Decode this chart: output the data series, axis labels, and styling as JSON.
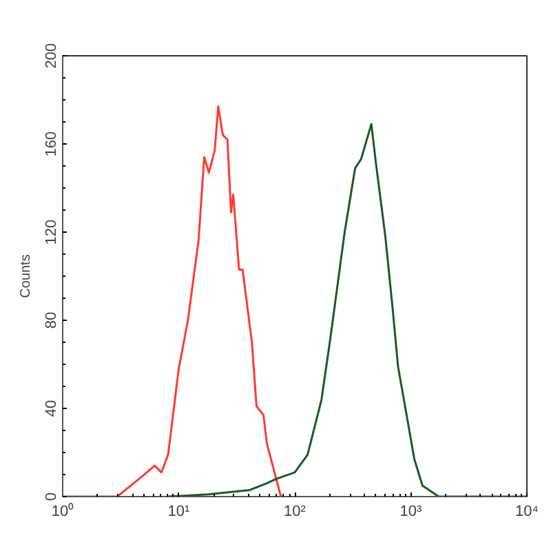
{
  "chart_data": {
    "type": "line",
    "ylabel": "Counts",
    "log": "x",
    "grid": false,
    "marker": "none",
    "line_style": "solid",
    "xlim": [
      1,
      10000
    ],
    "xticks": [
      {
        "value": 1,
        "label": "10⁰"
      },
      {
        "value": 10,
        "label": "10¹"
      },
      {
        "value": 100,
        "label": "10²"
      },
      {
        "value": 1000,
        "label": "10³"
      },
      {
        "value": 10000,
        "label": "10⁴"
      }
    ],
    "ylim": [
      0,
      200
    ],
    "yticks": [
      0,
      40,
      80,
      120,
      160,
      200
    ],
    "series": [
      {
        "color": "#ff3b30",
        "x": [
          1,
          2.95,
          4.8,
          6.2,
          7.1,
          8.1,
          10,
          12,
          14.8,
          16.6,
          18.2,
          20.4,
          21.9,
          24,
          26.3,
          28.2,
          29.5,
          33.1,
          35.5,
          42.7,
          46.8,
          53.7,
          57.5,
          69.2,
          75.9
        ],
        "values": [
          0,
          0,
          9,
          14,
          11,
          19,
          58,
          80,
          116,
          154,
          147,
          157,
          177,
          164,
          162,
          129,
          137,
          103,
          103,
          70,
          41,
          37,
          24,
          8,
          0
        ]
      },
      {
        "color": "#1e5a1e",
        "x": [
          8,
          18,
          41,
          57,
          69,
          100,
          129,
          170,
          204,
          269,
          331,
          372,
          457,
          501,
          603,
          692,
          776,
          1072,
          1259,
          1738,
          10000
        ],
        "values": [
          0,
          1,
          3,
          6,
          8,
          11,
          19,
          44,
          73,
          120,
          149,
          153,
          169,
          151,
          118,
          87,
          59,
          17,
          5,
          0,
          0
        ]
      }
    ]
  }
}
